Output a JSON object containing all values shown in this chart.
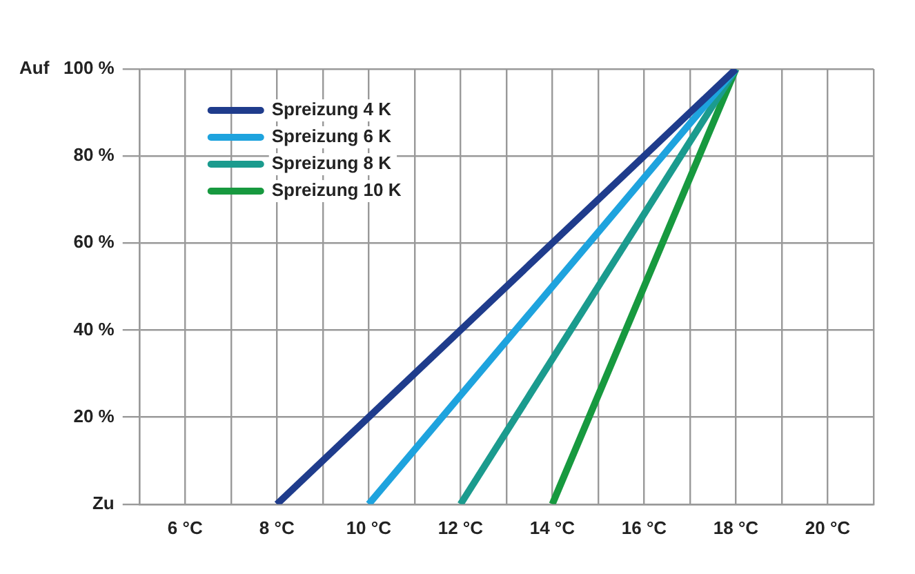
{
  "chart_data": {
    "type": "line",
    "xlim": [
      5,
      21
    ],
    "xticks": [
      {
        "value": 5,
        "label": null
      },
      {
        "value": 6,
        "label": "6 °C"
      },
      {
        "value": 7,
        "label": null
      },
      {
        "value": 8,
        "label": "8 °C"
      },
      {
        "value": 9,
        "label": null
      },
      {
        "value": 10,
        "label": "10 °C"
      },
      {
        "value": 11,
        "label": null
      },
      {
        "value": 12,
        "label": "12 °C"
      },
      {
        "value": 13,
        "label": null
      },
      {
        "value": 14,
        "label": "14 °C"
      },
      {
        "value": 15,
        "label": null
      },
      {
        "value": 16,
        "label": "16 °C"
      },
      {
        "value": 17,
        "label": null
      },
      {
        "value": 18,
        "label": "18 °C"
      },
      {
        "value": 19,
        "label": null
      },
      {
        "value": 20,
        "label": "20 °C"
      },
      {
        "value": 21,
        "label": null
      }
    ],
    "ylim": [
      0,
      100
    ],
    "yticks": [
      {
        "value": 0,
        "label": "Zu"
      },
      {
        "value": 20,
        "label": "20 %"
      },
      {
        "value": 40,
        "label": "40 %"
      },
      {
        "value": 60,
        "label": "60 %"
      },
      {
        "value": 80,
        "label": "80 %"
      },
      {
        "value": 100,
        "label": "100 %"
      }
    ],
    "annotations": [
      "Auf"
    ],
    "grid": true,
    "legend": "top left",
    "marker": "none",
    "line_style": "solid",
    "series": [
      {
        "name": "Spreizung 4 K",
        "color": "#1f3c8c",
        "x": [
          8,
          18
        ],
        "values": [
          0,
          100
        ]
      },
      {
        "name": "Spreizung 6 K",
        "color": "#1ea3de",
        "x": [
          10,
          18
        ],
        "values": [
          0,
          100
        ]
      },
      {
        "name": "Spreizung 8 K",
        "color": "#1b9b8e",
        "x": [
          12,
          18
        ],
        "values": [
          0,
          100
        ]
      },
      {
        "name": "Spreizung 10 K",
        "color": "#17993f",
        "x": [
          14,
          18
        ],
        "values": [
          0,
          100
        ]
      }
    ]
  }
}
